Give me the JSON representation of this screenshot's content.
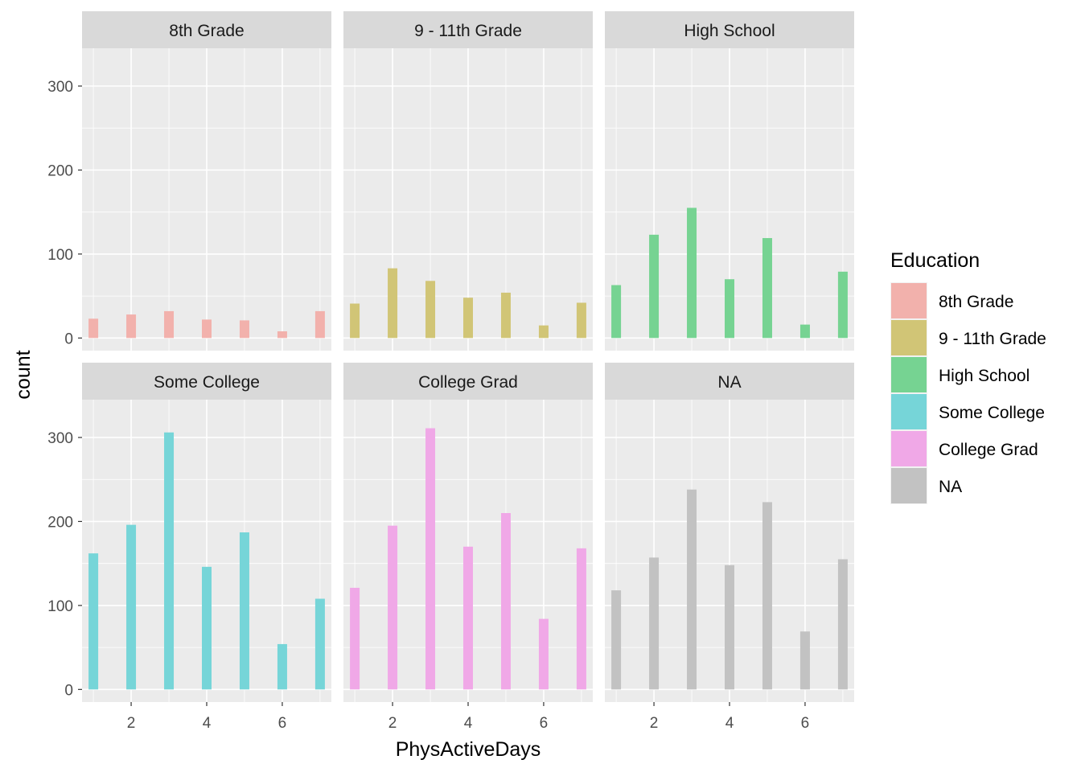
{
  "chart_data": {
    "type": "bar",
    "facet_layout": "2x3",
    "xlabel": "PhysActiveDays",
    "ylabel": "count",
    "x_ticks": [
      2,
      4,
      6
    ],
    "y_ticks": [
      0,
      100,
      200,
      300
    ],
    "x_range": [
      0.7,
      7.3
    ],
    "y_range": [
      -15,
      345
    ],
    "x_values": [
      1,
      2,
      3,
      4,
      5,
      6,
      7
    ],
    "grid": true,
    "legend_position": "right",
    "legend_title": "Education",
    "panels": [
      {
        "name": "8th Grade",
        "color": "#F8766D",
        "values": [
          23,
          28,
          32,
          22,
          21,
          8,
          32
        ]
      },
      {
        "name": "9 - 11th Grade",
        "color": "#B79F00",
        "values": [
          41,
          83,
          68,
          48,
          54,
          15,
          42
        ]
      },
      {
        "name": "High School",
        "color": "#00BA38",
        "values": [
          63,
          123,
          155,
          70,
          119,
          16,
          79
        ]
      },
      {
        "name": "Some College",
        "color": "#00BFC4",
        "values": [
          162,
          196,
          306,
          146,
          187,
          54,
          108
        ]
      },
      {
        "name": "College Grad",
        "color": "#F564E3",
        "values": [
          121,
          195,
          311,
          170,
          210,
          84,
          168
        ]
      },
      {
        "name": "NA",
        "color": "#999999",
        "values": [
          118,
          157,
          238,
          148,
          223,
          69,
          155
        ]
      }
    ]
  },
  "legend_items": [
    {
      "label": "8th Grade",
      "color": "#F8766D"
    },
    {
      "label": "9 - 11th Grade",
      "color": "#B79F00"
    },
    {
      "label": "High School",
      "color": "#00BA38"
    },
    {
      "label": "Some College",
      "color": "#00BFC4"
    },
    {
      "label": "College Grad",
      "color": "#F564E3"
    },
    {
      "label": "NA",
      "color": "#999999"
    }
  ]
}
